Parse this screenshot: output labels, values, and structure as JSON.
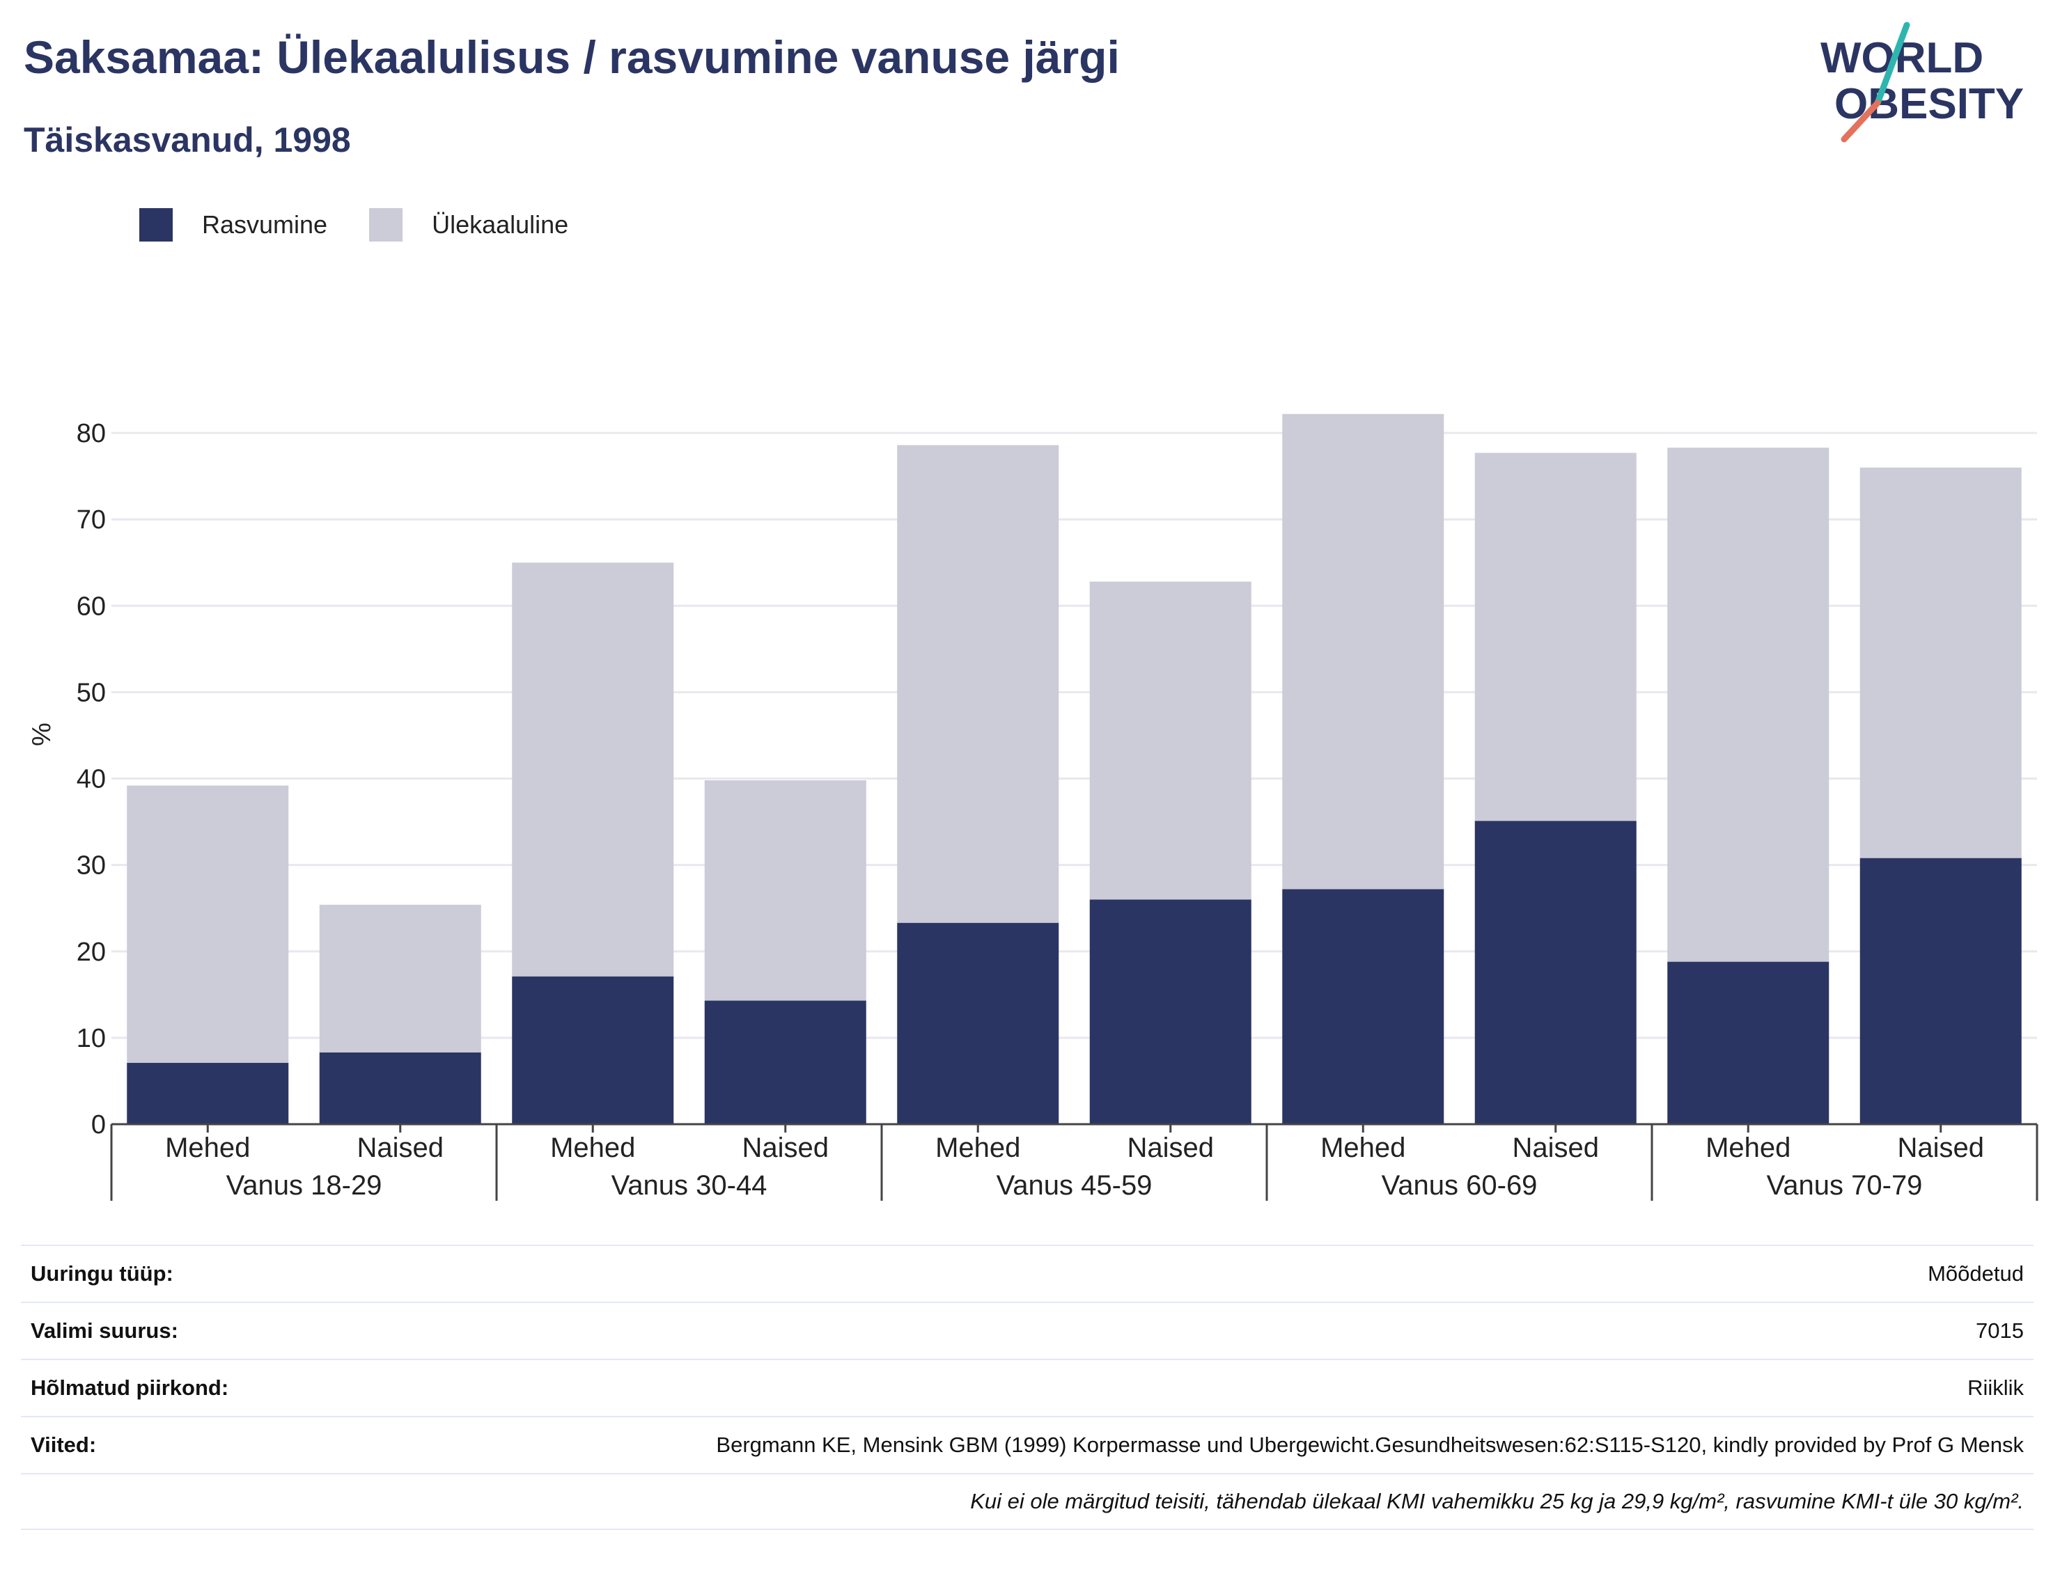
{
  "header": {
    "title": "Saksamaa: Ülekaalulisus / rasvumine vanuse järgi",
    "subtitle": "Täiskasvanud, 1998"
  },
  "logo": {
    "line1": "WORLD",
    "line2": "OBESITY",
    "icon": "world-obesity-logo"
  },
  "colors": {
    "obesity": "#2b3563",
    "overweight": "#cbccd8",
    "text": "#2b3563",
    "grid": "#e8e8ee"
  },
  "chart_data": {
    "type": "bar",
    "stacked": true,
    "ylabel": "%",
    "ylim": [
      0,
      85
    ],
    "yticks": [
      0,
      10,
      20,
      30,
      40,
      50,
      60,
      70,
      80
    ],
    "grid": true,
    "legend_position": "top-left",
    "groups": [
      {
        "label": "Vanus 18-29",
        "categories": [
          "Mehed",
          "Naised"
        ]
      },
      {
        "label": "Vanus 30-44",
        "categories": [
          "Mehed",
          "Naised"
        ]
      },
      {
        "label": "Vanus 45-59",
        "categories": [
          "Mehed",
          "Naised"
        ]
      },
      {
        "label": "Vanus 60-69",
        "categories": [
          "Mehed",
          "Naised"
        ]
      },
      {
        "label": "Vanus 70-79",
        "categories": [
          "Mehed",
          "Naised"
        ]
      }
    ],
    "series": [
      {
        "name": "Rasvumine",
        "values": [
          7.1,
          8.3,
          17.1,
          14.3,
          23.3,
          26.0,
          27.2,
          35.1,
          18.8,
          30.8
        ]
      },
      {
        "name": "Ülekaaluline",
        "values": [
          32.1,
          17.1,
          47.9,
          25.5,
          55.3,
          36.8,
          55.0,
          42.6,
          59.5,
          45.2
        ]
      }
    ]
  },
  "info_table": {
    "rows": [
      {
        "label": "Uuringu tüüp:",
        "value": "Mõõdetud"
      },
      {
        "label": "Valimi suurus:",
        "value": "7015"
      },
      {
        "label": "Hõlmatud piirkond:",
        "value": "Riiklik"
      },
      {
        "label": "Viited:",
        "value": "Bergmann KE, Mensink GBM (1999) Korpermasse und Ubergewicht.Gesundheitswesen:62:S115-S120, kindly provided by Prof G Mensk"
      }
    ],
    "note": "Kui ei ole märgitud teisiti, tähendab ülekaal KMI vahemikku 25 kg ja 29,9 kg/m², rasvumine KMI-t üle 30 kg/m²."
  }
}
